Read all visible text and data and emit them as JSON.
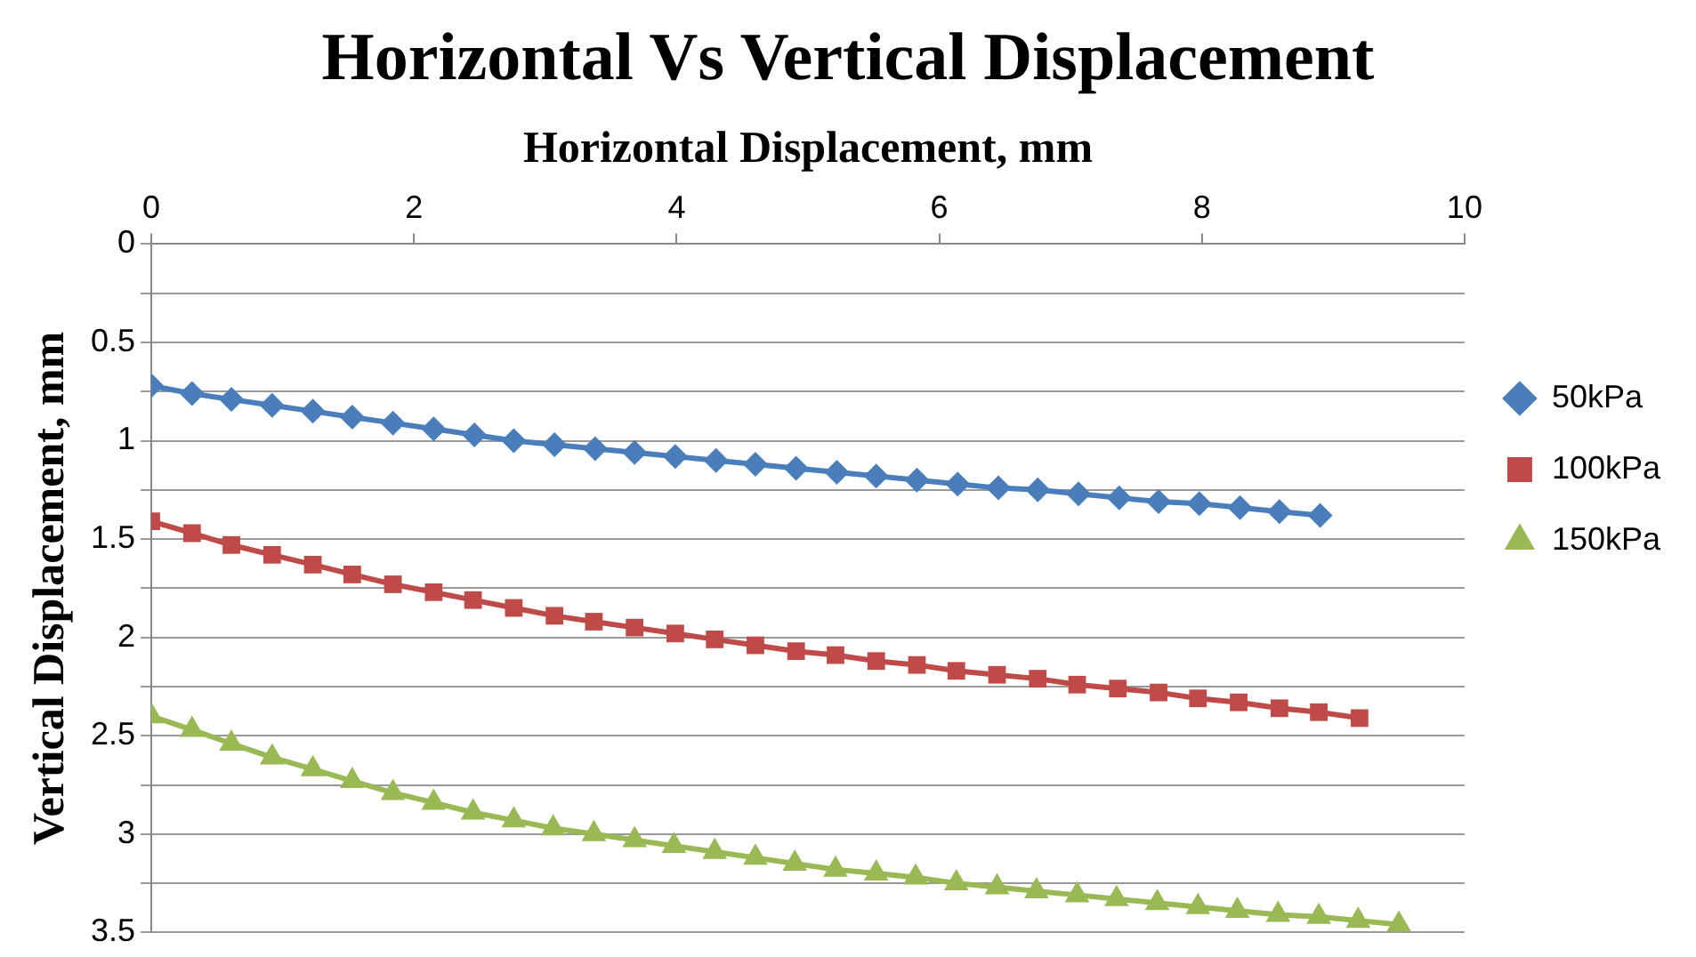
{
  "chart_data": {
    "type": "line",
    "title": "Horizontal Vs Vertical Displacement",
    "xlabel": "Horizontal Displacement, mm",
    "ylabel": "Vertical Displacement, mm",
    "xlim": [
      0,
      10
    ],
    "xticks": [
      0,
      2,
      4,
      6,
      8,
      10
    ],
    "ylim": [
      3.5,
      0
    ],
    "yticks": [
      0,
      {
        "value": 0.25,
        "label": null
      },
      0.5,
      {
        "value": 0.75,
        "label": null
      },
      1,
      {
        "value": 1.25,
        "label": null
      },
      1.5,
      {
        "value": 1.75,
        "label": null
      },
      2,
      {
        "value": 2.25,
        "label": null
      },
      2.5,
      {
        "value": 2.75,
        "label": null
      },
      3,
      {
        "value": 3.25,
        "label": null
      },
      3.5
    ],
    "grid": "y",
    "legend": "right",
    "series": [
      {
        "name": "50kPa",
        "color": "#4a7ebb",
        "marker": "diamond",
        "x": [
          0,
          0.31,
          0.61,
          0.92,
          1.23,
          1.53,
          1.84,
          2.15,
          2.46,
          2.76,
          3.07,
          3.38,
          3.68,
          3.99,
          4.3,
          4.6,
          4.91,
          5.22,
          5.52,
          5.83,
          6.14,
          6.45,
          6.75,
          7.06,
          7.37,
          7.67,
          7.98,
          8.29,
          8.59,
          8.9
        ],
        "values": [
          0.72,
          0.76,
          0.79,
          0.82,
          0.85,
          0.88,
          0.91,
          0.94,
          0.97,
          1.0,
          1.02,
          1.04,
          1.06,
          1.08,
          1.1,
          1.12,
          1.14,
          1.16,
          1.18,
          1.2,
          1.22,
          1.24,
          1.25,
          1.27,
          1.29,
          1.31,
          1.32,
          1.34,
          1.36,
          1.38
        ]
      },
      {
        "name": "100kPa",
        "color": "#be4b48",
        "marker": "square",
        "x": [
          0,
          0.31,
          0.61,
          0.92,
          1.23,
          1.53,
          1.84,
          2.15,
          2.45,
          2.76,
          3.07,
          3.37,
          3.68,
          3.99,
          4.29,
          4.6,
          4.91,
          5.21,
          5.52,
          5.83,
          6.13,
          6.44,
          6.75,
          7.05,
          7.36,
          7.67,
          7.97,
          8.28,
          8.59,
          8.89,
          9.2
        ],
        "values": [
          1.41,
          1.47,
          1.53,
          1.58,
          1.63,
          1.68,
          1.73,
          1.77,
          1.81,
          1.85,
          1.89,
          1.92,
          1.95,
          1.98,
          2.01,
          2.04,
          2.07,
          2.09,
          2.12,
          2.14,
          2.17,
          2.19,
          2.21,
          2.24,
          2.26,
          2.28,
          2.31,
          2.33,
          2.36,
          2.38,
          2.41
        ]
      },
      {
        "name": "150kPa",
        "color": "#98b954",
        "marker": "triangle",
        "x": [
          0,
          0.31,
          0.61,
          0.92,
          1.23,
          1.53,
          1.84,
          2.15,
          2.45,
          2.76,
          3.06,
          3.37,
          3.68,
          3.98,
          4.29,
          4.6,
          4.9,
          5.21,
          5.52,
          5.82,
          6.13,
          6.44,
          6.74,
          7.05,
          7.35,
          7.66,
          7.97,
          8.27,
          8.58,
          8.89,
          9.19,
          9.5
        ],
        "values": [
          2.4,
          2.47,
          2.54,
          2.61,
          2.67,
          2.73,
          2.79,
          2.84,
          2.89,
          2.93,
          2.97,
          3.0,
          3.03,
          3.06,
          3.09,
          3.12,
          3.15,
          3.18,
          3.2,
          3.22,
          3.25,
          3.27,
          3.29,
          3.31,
          3.33,
          3.35,
          3.37,
          3.39,
          3.41,
          3.42,
          3.44,
          3.46
        ]
      }
    ]
  }
}
